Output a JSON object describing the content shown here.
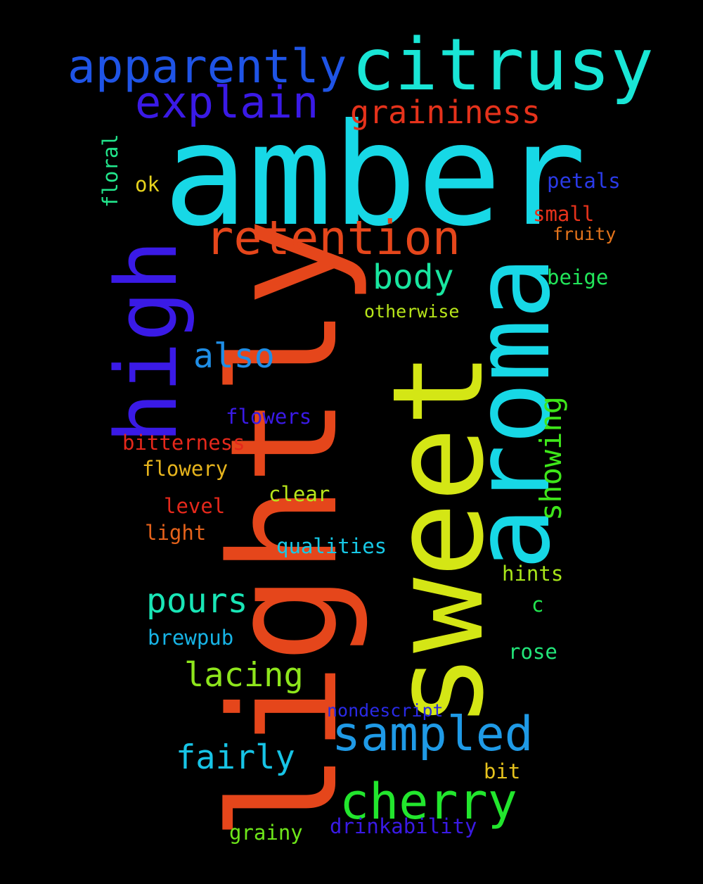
{
  "words": [
    {
      "text": "amber",
      "color": "#17d8e6"
    },
    {
      "text": "lightly",
      "color": "#e5461b"
    },
    {
      "text": "sweet",
      "color": "#d4e615"
    },
    {
      "text": "aroma",
      "color": "#17d8e6"
    },
    {
      "text": "citrusy",
      "color": "#19e6d6"
    },
    {
      "text": "high",
      "color": "#3a1ae6"
    },
    {
      "text": "apparently",
      "color": "#1f54e6"
    },
    {
      "text": "retention",
      "color": "#e5461b"
    },
    {
      "text": "explain",
      "color": "#3a1ae6"
    },
    {
      "text": "sampled",
      "color": "#1f9ae6"
    },
    {
      "text": "cherry",
      "color": "#22e62d"
    },
    {
      "text": "graininess",
      "color": "#e5321b"
    },
    {
      "text": "fairly",
      "color": "#17c4e6"
    },
    {
      "text": "lacing",
      "color": "#8ee61c"
    },
    {
      "text": "pours",
      "color": "#19e6b6"
    },
    {
      "text": "body",
      "color": "#19e6a0"
    },
    {
      "text": "also",
      "color": "#1f8ee6"
    },
    {
      "text": "showing",
      "color": "#3ee61a"
    },
    {
      "text": "flowers",
      "color": "#3a1ae6"
    },
    {
      "text": "bitterness",
      "color": "#e5281b"
    },
    {
      "text": "flowery",
      "color": "#e6b41d"
    },
    {
      "text": "clear",
      "color": "#b8e61a"
    },
    {
      "text": "level",
      "color": "#e5281b"
    },
    {
      "text": "light",
      "color": "#e5621b"
    },
    {
      "text": "qualities",
      "color": "#17c8e6"
    },
    {
      "text": "hints",
      "color": "#a8e61a"
    },
    {
      "text": "brewpub",
      "color": "#17b4e6"
    },
    {
      "text": "rose",
      "color": "#22e67a"
    },
    {
      "text": "nondescript",
      "color": "#2a2ae6"
    },
    {
      "text": "bit",
      "color": "#e6c21d"
    },
    {
      "text": "drinkability",
      "color": "#3a1ae6"
    },
    {
      "text": "grainy",
      "color": "#6ee61a"
    },
    {
      "text": "floral",
      "color": "#22e68c"
    },
    {
      "text": "ok",
      "color": "#e6d21d"
    },
    {
      "text": "petals",
      "color": "#2a3ae6"
    },
    {
      "text": "small",
      "color": "#e5321b"
    },
    {
      "text": "fruity",
      "color": "#e5741b"
    },
    {
      "text": "beige",
      "color": "#22e65a"
    },
    {
      "text": "otherwise",
      "color": "#b8e61a"
    },
    {
      "text": "c",
      "color": "#22e650"
    }
  ]
}
